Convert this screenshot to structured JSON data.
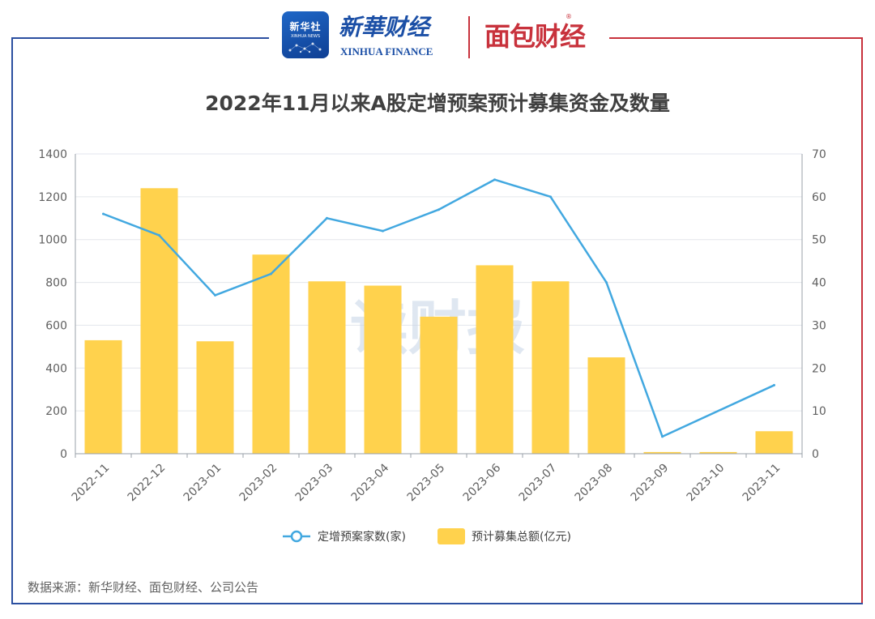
{
  "header": {
    "badge_text": "新华社",
    "badge_sub": "XINHUA NEWS",
    "brand_cn": "新華财经",
    "brand_en": "XINHUA FINANCE",
    "partner_logo": "面包财经",
    "partner_reg": "®"
  },
  "watermark": "读财报",
  "source": "数据来源：新华财经、面包财经、公司公告",
  "colors": {
    "bar": "#ffd24d",
    "line": "#42a8e0",
    "frame_blue": "#2b4fa0",
    "frame_red": "#c8323c"
  },
  "chart_data": {
    "type": "bar",
    "title": "2022年11月以来A股定增预案预计募集资金及数量",
    "categories": [
      "2022-11",
      "2022-12",
      "2023-01",
      "2023-02",
      "2023-03",
      "2023-04",
      "2023-05",
      "2023-06",
      "2023-07",
      "2023-08",
      "2023-09",
      "2023-10",
      "2023-11"
    ],
    "series": [
      {
        "name": "预计募集总额(亿元)",
        "type": "bar",
        "axis": "left",
        "values": [
          530,
          1240,
          525,
          930,
          805,
          785,
          640,
          880,
          805,
          450,
          8,
          8,
          105
        ]
      },
      {
        "name": "定增预案家数(家)",
        "type": "line",
        "axis": "right",
        "values": [
          56,
          51,
          37,
          42,
          55,
          52,
          57,
          64,
          60,
          40,
          4,
          null,
          16
        ]
      }
    ],
    "left_axis": {
      "min": 0,
      "max": 1400,
      "ticks": [
        0,
        200,
        400,
        600,
        800,
        1000,
        1200,
        1400
      ]
    },
    "right_axis": {
      "min": 0,
      "max": 70,
      "ticks": [
        0,
        10,
        20,
        30,
        40,
        50,
        60,
        70
      ]
    },
    "legend": [
      "定增预案家数(家)",
      "预计募集总额(亿元)"
    ],
    "legend_position": "bottom",
    "grid": true
  }
}
